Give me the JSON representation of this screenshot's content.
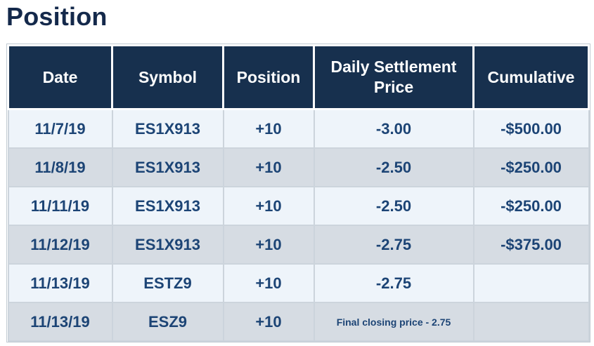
{
  "page_title": "Position",
  "colors": {
    "header_bg": "#17304e",
    "body_text": "#1c4475",
    "row_light": "#eef4fa",
    "row_gray": "#d6dce3",
    "title_text": "#14294b"
  },
  "table": {
    "columns": [
      {
        "key": "date",
        "label": "Date"
      },
      {
        "key": "symbol",
        "label": "Symbol"
      },
      {
        "key": "position",
        "label": "Position"
      },
      {
        "key": "settlement",
        "label": "Daily Settlement Price"
      },
      {
        "key": "cumulative",
        "label": "Cumulative"
      }
    ],
    "rows": [
      {
        "date": "11/7/19",
        "symbol": "ES1X913",
        "position": "+10",
        "settlement": "-3.00",
        "cumulative": "-$500.00"
      },
      {
        "date": "11/8/19",
        "symbol": "ES1X913",
        "position": "+10",
        "settlement": "-2.50",
        "cumulative": "-$250.00"
      },
      {
        "date": "11/11/19",
        "symbol": "ES1X913",
        "position": "+10",
        "settlement": "-2.50",
        "cumulative": "-$250.00"
      },
      {
        "date": "11/12/19",
        "symbol": "ES1X913",
        "position": "+10",
        "settlement": "-2.75",
        "cumulative": "-$375.00"
      },
      {
        "date": "11/13/19",
        "symbol": "ESTZ9",
        "position": "+10",
        "settlement": "-2.75",
        "cumulative": ""
      },
      {
        "date": "11/13/19",
        "symbol": "ESZ9",
        "position": "+10",
        "settlement": "Final closing price - 2.75",
        "cumulative": "",
        "settlement_small": true
      }
    ]
  }
}
